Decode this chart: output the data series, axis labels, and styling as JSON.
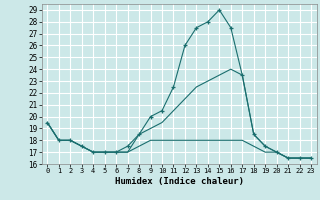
{
  "title": "",
  "xlabel": "Humidex (Indice chaleur)",
  "background_color": "#cce8e8",
  "grid_color": "#ffffff",
  "line_color": "#1a6e6e",
  "xlim": [
    -0.5,
    23.5
  ],
  "ylim": [
    16,
    29.5
  ],
  "yticks": [
    16,
    17,
    18,
    19,
    20,
    21,
    22,
    23,
    24,
    25,
    26,
    27,
    28,
    29
  ],
  "xticks": [
    0,
    1,
    2,
    3,
    4,
    5,
    6,
    7,
    8,
    9,
    10,
    11,
    12,
    13,
    14,
    15,
    16,
    17,
    18,
    19,
    20,
    21,
    22,
    23
  ],
  "series": [
    {
      "x": [
        0,
        1,
        2,
        3,
        4,
        5,
        6,
        7,
        8,
        9,
        10,
        11,
        12,
        13,
        14,
        15,
        16,
        17,
        18,
        19,
        20,
        21,
        22,
        23
      ],
      "y": [
        19.5,
        18.0,
        18.0,
        17.5,
        17.0,
        17.0,
        17.0,
        17.5,
        18.5,
        20.0,
        20.5,
        22.5,
        26.0,
        27.5,
        28.0,
        29.0,
        27.5,
        23.5,
        18.5,
        17.5,
        17.0,
        16.5,
        16.5,
        16.5
      ],
      "marker": "+"
    },
    {
      "x": [
        0,
        1,
        2,
        3,
        4,
        5,
        6,
        7,
        8,
        9,
        10,
        11,
        12,
        13,
        14,
        15,
        16,
        17,
        18,
        19,
        20,
        21,
        22,
        23
      ],
      "y": [
        19.5,
        18.0,
        18.0,
        17.5,
        17.0,
        17.0,
        17.0,
        17.0,
        17.5,
        18.0,
        18.0,
        18.0,
        18.0,
        18.0,
        18.0,
        18.0,
        18.0,
        18.0,
        17.5,
        17.0,
        17.0,
        16.5,
        16.5,
        16.5
      ],
      "marker": null
    },
    {
      "x": [
        0,
        1,
        2,
        3,
        4,
        5,
        6,
        7,
        8,
        9,
        10,
        11,
        12,
        13,
        14,
        15,
        16,
        17,
        18,
        19,
        20,
        21,
        22,
        23
      ],
      "y": [
        19.5,
        18.0,
        18.0,
        17.5,
        17.0,
        17.0,
        17.0,
        17.0,
        18.5,
        19.0,
        19.5,
        20.5,
        21.5,
        22.5,
        23.0,
        23.5,
        24.0,
        23.5,
        18.5,
        17.5,
        17.0,
        16.5,
        16.5,
        16.5
      ],
      "marker": null
    }
  ]
}
